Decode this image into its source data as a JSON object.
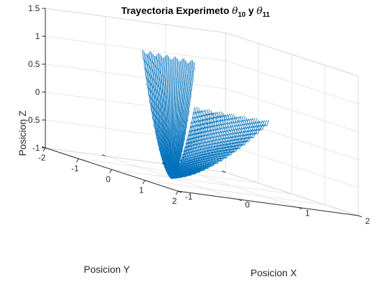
{
  "chart_data": {
    "type": "line",
    "subtype": "3d-line",
    "title": {
      "prefix": "Trayectoria Experimeto ",
      "symbol_1": "θ",
      "sub_1": "10",
      "joiner": " y ",
      "symbol_2": "θ",
      "sub_2": "11"
    },
    "xlabel": "Posicion X",
    "ylabel": "Posicion Y",
    "zlabel": "Posicion Z",
    "xlim": [
      -2,
      2
    ],
    "ylim": [
      -1,
      2
    ],
    "zlim": [
      -1,
      1.5
    ],
    "xticks": [
      -2,
      -1,
      0,
      1,
      2
    ],
    "yticks": [
      -1,
      0,
      1,
      2
    ],
    "zticks": [
      -1,
      -0.5,
      0,
      0.5,
      1,
      1.5
    ],
    "grid": true,
    "box": true,
    "line_color": "#0072BD",
    "trajectory": {
      "description_visible": "many overlapping passes of a U-shaped path with small oscillations",
      "passes": 45,
      "start": [
        -1.0,
        1.5,
        0.15
      ],
      "bottom": [
        0.0,
        0.0,
        -1.0
      ],
      "end": [
        1.3,
        -0.8,
        1.3
      ],
      "spread_x": [
        -0.3,
        0.3
      ],
      "spread_y": [
        -0.4,
        0.5
      ]
    }
  }
}
